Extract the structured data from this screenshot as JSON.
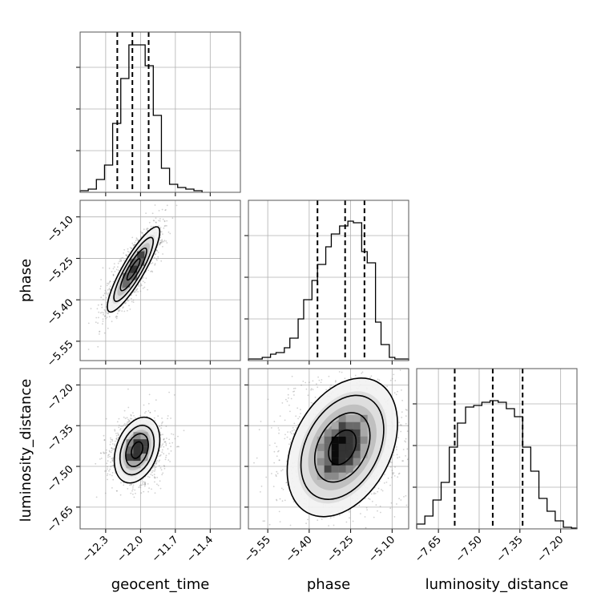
{
  "chart_data": {
    "type": "corner",
    "parameters": [
      "geocent_time",
      "phase",
      "luminosity_distance"
    ],
    "axis_labels": {
      "x": [
        "geocent_time",
        "phase",
        "luminosity_distance"
      ],
      "y": [
        "phase",
        "luminosity_distance"
      ]
    },
    "grid": true,
    "ranges": {
      "geocent_time": [
        -12.52,
        -11.14
      ],
      "phase": [
        -5.62,
        -5.04
      ],
      "luminosity_distance": [
        -7.73,
        -7.14
      ]
    },
    "ticks": {
      "geocent_time": [
        {
          "v": -12.3,
          "label": "−12.3"
        },
        {
          "v": -12.0,
          "label": "−12.0"
        },
        {
          "v": -11.7,
          "label": "−11.7"
        },
        {
          "v": -11.4,
          "label": "−11.4"
        }
      ],
      "phase": [
        {
          "v": -5.55,
          "label": "−5.55"
        },
        {
          "v": -5.4,
          "label": "−5.40"
        },
        {
          "v": -5.25,
          "label": "−5.25"
        },
        {
          "v": -5.1,
          "label": "−5.10"
        }
      ],
      "luminosity_distance": [
        {
          "v": -7.65,
          "label": "−7.65"
        },
        {
          "v": -7.5,
          "label": "−7.50"
        },
        {
          "v": -7.35,
          "label": "−7.35"
        },
        {
          "v": -7.2,
          "label": "−7.20"
        }
      ]
    },
    "diag_y_gridlines": [
      0.26,
      0.52,
      0.78
    ],
    "marginals": {
      "geocent_time": {
        "bin_edges": [
          -12.52,
          -12.45,
          -12.38,
          -12.31,
          -12.24,
          -12.17,
          -12.1,
          -12.03,
          -11.96,
          -11.89,
          -11.82,
          -11.75,
          -11.68,
          -11.61,
          -11.54,
          -11.47
        ],
        "counts": [
          0.01,
          0.02,
          0.08,
          0.17,
          0.43,
          0.71,
          0.92,
          0.92,
          0.79,
          0.48,
          0.15,
          0.05,
          0.03,
          0.02,
          0.01
        ],
        "quantiles": [
          -12.2,
          -12.07,
          -11.93
        ]
      },
      "phase": {
        "bin_edges": [
          -5.62,
          -5.59,
          -5.57,
          -5.54,
          -5.52,
          -5.49,
          -5.47,
          -5.44,
          -5.42,
          -5.39,
          -5.37,
          -5.34,
          -5.32,
          -5.29,
          -5.26,
          -5.24,
          -5.21,
          -5.19,
          -5.16,
          -5.14,
          -5.11,
          -5.09,
          -5.04
        ],
        "counts": [
          0.01,
          0.01,
          0.02,
          0.04,
          0.05,
          0.08,
          0.14,
          0.26,
          0.38,
          0.5,
          0.6,
          0.71,
          0.79,
          0.84,
          0.87,
          0.86,
          0.68,
          0.61,
          0.24,
          0.1,
          0.02,
          0.01
        ],
        "quantiles": [
          -5.37,
          -5.27,
          -5.2
        ]
      },
      "luminosity_distance": {
        "bin_edges": [
          -7.73,
          -7.7,
          -7.67,
          -7.64,
          -7.61,
          -7.58,
          -7.55,
          -7.52,
          -7.49,
          -7.46,
          -7.43,
          -7.4,
          -7.37,
          -7.34,
          -7.31,
          -7.28,
          -7.25,
          -7.22,
          -7.19,
          -7.16,
          -7.14
        ],
        "counts": [
          0.03,
          0.08,
          0.18,
          0.29,
          0.51,
          0.66,
          0.76,
          0.77,
          0.79,
          0.8,
          0.79,
          0.75,
          0.7,
          0.51,
          0.36,
          0.19,
          0.11,
          0.05,
          0.01,
          0.005
        ],
        "quantiles": [
          -7.59,
          -7.45,
          -7.34
        ]
      }
    },
    "contours_2d": {
      "geocent_time_phase": {
        "center": [
          -12.06,
          -5.29
        ],
        "principal_angle_deg": 60,
        "sigma_major": 0.2,
        "sigma_minor": 0.045,
        "levels_sigma": [
          0.5,
          1.0,
          1.5,
          2.0
        ]
      },
      "geocent_time_luminosity_distance": {
        "center": [
          -12.03,
          -7.44
        ],
        "principal_angle_deg": 70,
        "sigma_major": 0.14,
        "sigma_minor": 0.085,
        "levels_sigma": [
          0.5,
          1.0,
          1.5,
          2.0
        ]
      },
      "phase_luminosity_distance": {
        "center": [
          -5.28,
          -7.43
        ],
        "principal_angle_deg": 62,
        "sigma_major": 0.13,
        "sigma_minor": 0.085,
        "levels_sigma": [
          0.5,
          1.0,
          1.5,
          2.0
        ]
      }
    }
  }
}
